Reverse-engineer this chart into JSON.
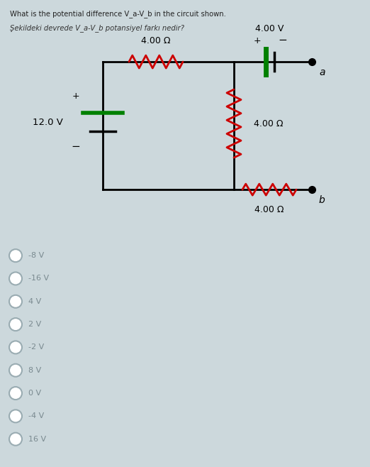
{
  "title_en": "What is the potential difference V_a-V_b in the circuit shown.",
  "title_tr": "Şekildeki devrede V_a-V_b potansiyel farkı nedir?",
  "bg_color": "#ccd8dc",
  "circuit_bg": "#ffffff",
  "wire_color": "#000000",
  "resistor_red": "#cc0000",
  "battery_green": "#008000",
  "options": [
    "-8 V",
    "-16 V",
    "4 V",
    "2 V",
    "-2 V",
    "8 V",
    "0 V",
    "-4 V",
    "16 V"
  ],
  "volt_12": "12.0 V",
  "volt_4": "4.00 V",
  "res1": "4.00 Ω",
  "res2": "4.00 Ω",
  "res3": "4.00 Ω",
  "label_a": "a",
  "label_b": "b",
  "option_circle_color": "#ffffff",
  "option_circle_edge": "#9aacb2",
  "option_text_color": "#7a8a90"
}
